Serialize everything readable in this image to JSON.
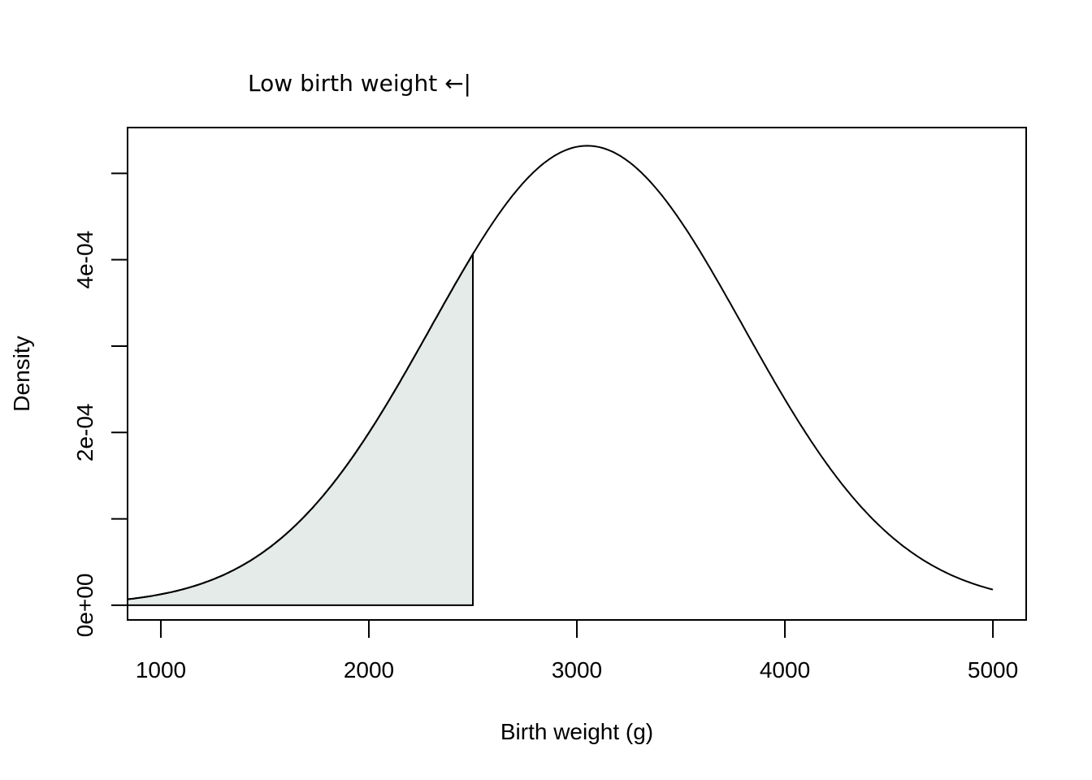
{
  "chart_data": {
    "type": "area",
    "title": "",
    "xlabel": "Birth weight (g)",
    "ylabel": "Density",
    "xlim": [
      840,
      5160
    ],
    "ylim": [
      -1.7e-05,
      0.000553
    ],
    "x_ticks": [
      1000,
      2000,
      3000,
      4000,
      5000
    ],
    "y_ticks": [
      0,
      0.0001,
      0.0002,
      0.0003,
      0.0004,
      0.0005
    ],
    "y_tick_labels": [
      "0e+00",
      "",
      "2e-04",
      "",
      "4e-04",
      ""
    ],
    "x_tick_labels": [
      "1000",
      "2000",
      "3000",
      "4000",
      "5000"
    ],
    "series": [
      {
        "curve": "normal-density",
        "mean": 3050,
        "sd": 750,
        "x_range": [
          840,
          5000
        ],
        "points": [
          [
            840,
            6.9e-06
          ],
          [
            1000,
            1.26e-05
          ],
          [
            1200,
            2.5e-05
          ],
          [
            1400,
            4.83e-05
          ],
          [
            1600,
            8.32e-05
          ],
          [
            1800,
            0.000133
          ],
          [
            2000,
            0.0001996
          ],
          [
            2200,
            0.00028
          ],
          [
            2400,
            0.0003458
          ],
          [
            2500,
            0.000402
          ],
          [
            2600,
            0.0004491
          ],
          [
            2800,
            0.0005084
          ],
          [
            3000,
            0.0005312
          ],
          [
            3050,
            0.000532
          ],
          [
            3200,
            0.0005214
          ],
          [
            3400,
            0.0004783
          ],
          [
            3600,
            0.000414
          ],
          [
            3800,
            0.0003363
          ],
          [
            4000,
            0.0002543
          ],
          [
            4200,
            0.0001823
          ],
          [
            4400,
            0.0001233
          ],
          [
            4600,
            7.47e-05
          ],
          [
            4800,
            3.6e-05
          ],
          [
            5000,
            1.78e-05
          ]
        ]
      }
    ],
    "shaded_region": {
      "from": 840,
      "to": 2500,
      "color": "#e5ebe8"
    },
    "annotation": "Low birth weight ←|",
    "annotation_at": 2500,
    "colors": {
      "line": "#000000",
      "fill": "#e5ebe8"
    }
  }
}
